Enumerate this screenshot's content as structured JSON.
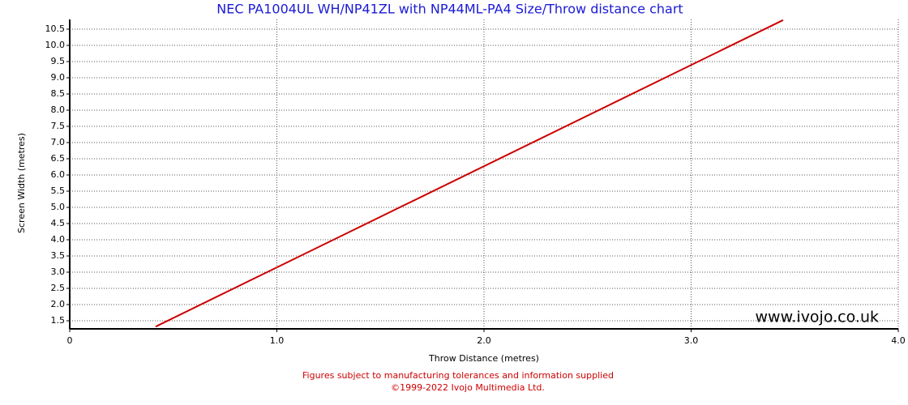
{
  "chart_data": {
    "type": "line",
    "title": "NEC PA1004UL WH/NP41ZL with NP44ML-PA4 Size/Throw distance chart",
    "x_label": "Throw Distance (metres)",
    "y_label": "Screen Width (metres)",
    "x": [
      0.415,
      3.444
    ],
    "values": [
      1.32,
      10.78
    ],
    "color": "#cc0000",
    "xlim": [
      0,
      4
    ],
    "ylim": [
      1.25,
      10.8
    ],
    "xticks": [
      0,
      {
        "value": 1,
        "label": "1.0"
      },
      {
        "value": 2,
        "label": "2.0"
      },
      {
        "value": 3,
        "label": "3.0"
      },
      {
        "value": 4,
        "label": "4.0"
      }
    ],
    "yticks": [
      {
        "value": 1.5,
        "label": "1.5"
      },
      {
        "value": 2,
        "label": "2.0"
      },
      {
        "value": 2.5,
        "label": "2.5"
      },
      {
        "value": 3,
        "label": "3.0"
      },
      {
        "value": 3.5,
        "label": "3.5"
      },
      {
        "value": 4,
        "label": "4.0"
      },
      {
        "value": 4.5,
        "label": "4.5"
      },
      {
        "value": 5,
        "label": "5.0"
      },
      {
        "value": 5.5,
        "label": "5.5"
      },
      {
        "value": 6,
        "label": "6.0"
      },
      {
        "value": 6.5,
        "label": "6.5"
      },
      {
        "value": 7,
        "label": "7.0"
      },
      {
        "value": 7.5,
        "label": "7.5"
      },
      {
        "value": 8,
        "label": "8.0"
      },
      {
        "value": 8.5,
        "label": "8.5"
      },
      {
        "value": 9,
        "label": "9.0"
      },
      {
        "value": 9.5,
        "label": "9.5"
      },
      {
        "value": 10,
        "label": "10.0"
      },
      {
        "value": 10.5,
        "label": "10.5"
      }
    ],
    "grid": true,
    "watermark": "www.ivojo.co.uk",
    "footnotes": [
      "Figures subject to manufacturing tolerances and information supplied",
      "©1999-2022 Ivojo Multimedia Ltd."
    ]
  }
}
